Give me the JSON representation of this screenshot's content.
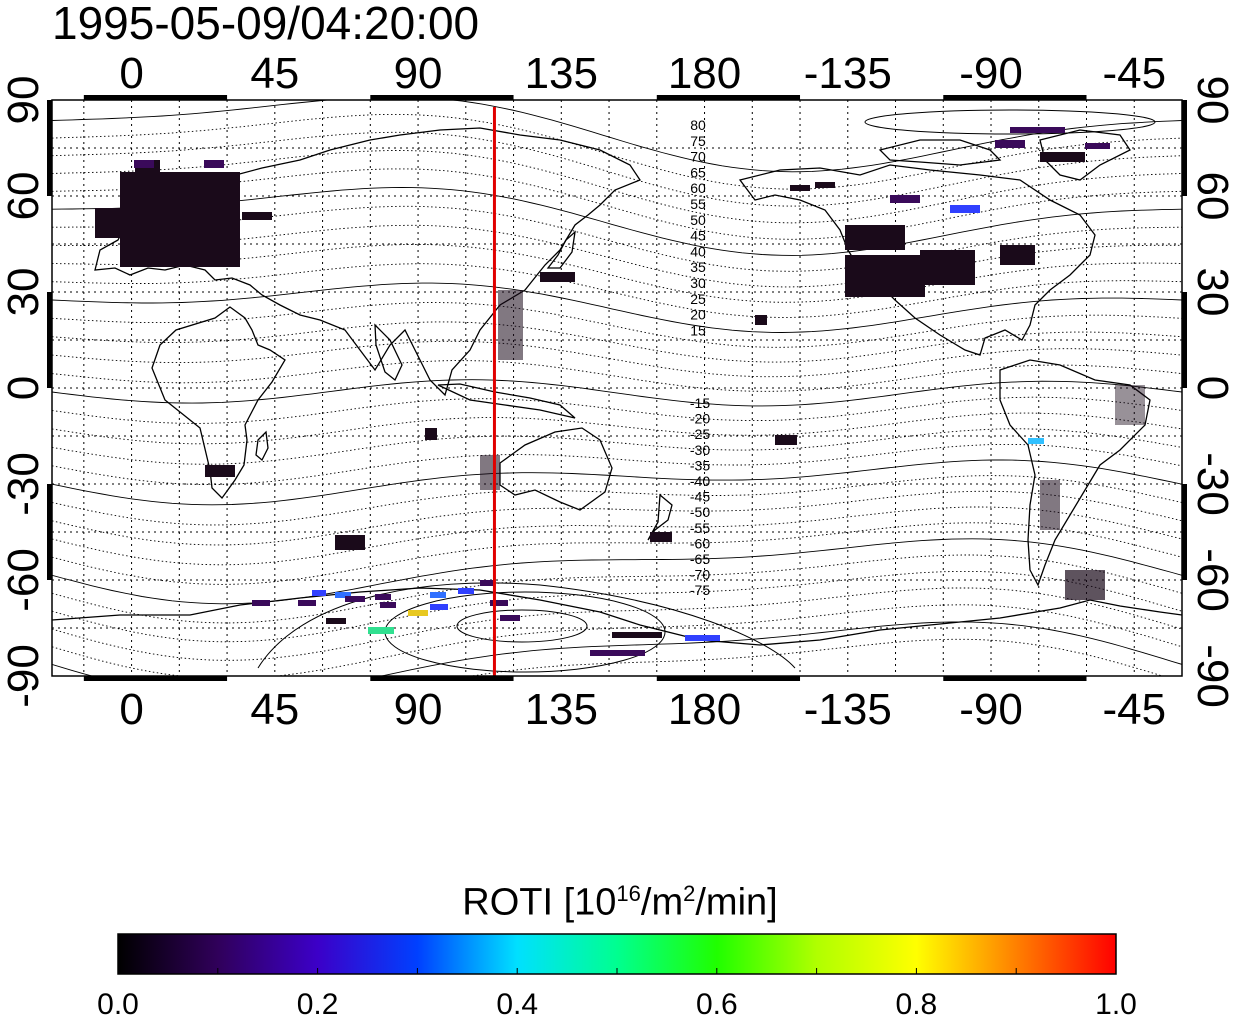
{
  "title": "1995-05-09/04:20:00",
  "map": {
    "lon_ticks": [
      0,
      45,
      90,
      135,
      180,
      -135,
      -90,
      -45
    ],
    "lon_tick_labels": [
      "0",
      "45",
      "90",
      "135",
      "180",
      "-135",
      "-90",
      "-45"
    ],
    "lat_ticks": [
      90,
      60,
      30,
      0,
      -30,
      -60,
      -90
    ],
    "lat_tick_labels": [
      "90",
      "60",
      "30",
      "0",
      "-30",
      "-60",
      "-90"
    ],
    "lon_range": [
      -25,
      330
    ],
    "lat_range": [
      -90,
      90
    ],
    "grid": true,
    "marker_line": {
      "lon": 114,
      "color": "#e00000"
    },
    "north_contour_labels": [
      "80",
      "75",
      "70",
      "65",
      "60",
      "55",
      "50",
      "45",
      "40",
      "35",
      "30",
      "25",
      "20",
      "15"
    ],
    "south_contour_labels": [
      "-15",
      "-20",
      "-25",
      "-30",
      "-35",
      "-40",
      "-45",
      "-50",
      "-55",
      "-60",
      "-65",
      "-70",
      "-75"
    ]
  },
  "colorbar": {
    "title_prefix": "ROTI  [10",
    "title_sup1": "16",
    "title_mid": "/m",
    "title_sup2": "2",
    "title_suffix": "/min]",
    "min": 0.0,
    "max": 1.0,
    "tick_labels": [
      "0.0",
      "0.2",
      "0.4",
      "0.6",
      "0.8",
      "1.0"
    ]
  }
}
